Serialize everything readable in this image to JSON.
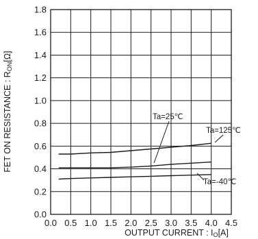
{
  "chart_data": {
    "type": "line",
    "xlabel_main": "OUTPUT CURRENT : I",
    "xlabel_sub": "O",
    "xlabel_unit": "[A]",
    "ylabel_main": "FET ON RESISTANCE : R",
    "ylabel_sub": "ON",
    "ylabel_unit": "[Ω]",
    "xlim": [
      0.0,
      4.5
    ],
    "ylim": [
      0.0,
      1.8
    ],
    "xticks": [
      "0.0",
      "0.5",
      "1.0",
      "1.5",
      "2.0",
      "2.5",
      "3.0",
      "3.5",
      "4.0",
      "4.5"
    ],
    "yticks": [
      "0.0",
      "0.2",
      "0.4",
      "0.6",
      "0.8",
      "1.0",
      "1.2",
      "1.4",
      "1.6",
      "1.8"
    ],
    "grid": true,
    "series": [
      {
        "name": "Ta=125℃",
        "x": [
          0.2,
          0.5,
          1.0,
          1.5,
          2.0,
          2.5,
          3.0,
          3.5,
          4.0
        ],
        "y": [
          0.53,
          0.53,
          0.54,
          0.545,
          0.56,
          0.575,
          0.59,
          0.605,
          0.625
        ]
      },
      {
        "name": "Ta=25℃",
        "x": [
          0.2,
          0.5,
          1.0,
          1.5,
          2.0,
          2.5,
          3.0,
          3.5,
          4.0
        ],
        "y": [
          0.41,
          0.41,
          0.41,
          0.41,
          0.415,
          0.425,
          0.44,
          0.45,
          0.46
        ]
      },
      {
        "name": "Ta=-40℃",
        "x": [
          0.2,
          0.5,
          1.0,
          1.5,
          2.0,
          2.5,
          3.0,
          3.5,
          4.0
        ],
        "y": [
          0.31,
          0.315,
          0.32,
          0.325,
          0.33,
          0.335,
          0.34,
          0.345,
          0.35
        ]
      }
    ],
    "annotations": [
      "Ta=25℃",
      "Ta=125℃",
      "Ta=-40℃"
    ]
  }
}
